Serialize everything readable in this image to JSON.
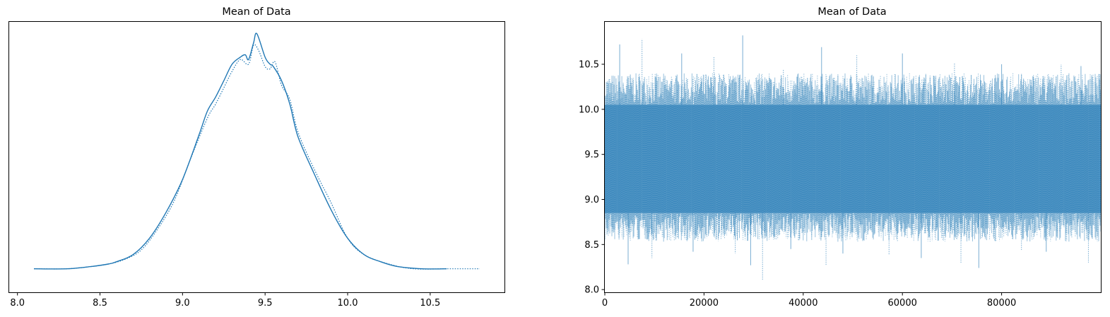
{
  "chart_data": [
    {
      "type": "line",
      "title": "Mean of Data",
      "xlabel": "",
      "ylabel": "",
      "xlim": [
        7.95,
        10.95
      ],
      "ylim": [
        -0.1,
        1.05
      ],
      "yticks_visible": false,
      "xticks": [
        8.0,
        8.5,
        9.0,
        9.5,
        10.0,
        10.5
      ],
      "xtick_labels": [
        "8.0",
        "8.5",
        "9.0",
        "9.5",
        "10.0",
        "10.5"
      ],
      "grid": false,
      "color": "#1f77b4",
      "series": [
        {
          "style": "solid",
          "x": [
            8.1,
            8.3,
            8.45,
            8.55,
            8.6,
            8.7,
            8.8,
            8.9,
            9.0,
            9.1,
            9.15,
            9.2,
            9.25,
            9.3,
            9.35,
            9.38,
            9.4,
            9.43,
            9.45,
            9.5,
            9.53,
            9.55,
            9.6,
            9.65,
            9.7,
            9.8,
            9.9,
            10.0,
            10.1,
            10.2,
            10.3,
            10.45,
            10.6
          ],
          "y": [
            0.0,
            0.0,
            0.01,
            0.02,
            0.03,
            0.06,
            0.13,
            0.24,
            0.38,
            0.57,
            0.67,
            0.73,
            0.8,
            0.87,
            0.9,
            0.91,
            0.89,
            0.96,
            1.0,
            0.9,
            0.87,
            0.86,
            0.8,
            0.7,
            0.56,
            0.4,
            0.25,
            0.13,
            0.06,
            0.03,
            0.01,
            0.0,
            0.0
          ]
        },
        {
          "style": "dotted",
          "x": [
            8.1,
            8.3,
            8.45,
            8.55,
            8.65,
            8.75,
            8.85,
            8.95,
            9.05,
            9.15,
            9.2,
            9.25,
            9.3,
            9.35,
            9.4,
            9.43,
            9.46,
            9.5,
            9.53,
            9.56,
            9.6,
            9.65,
            9.7,
            9.8,
            9.9,
            10.0,
            10.1,
            10.25,
            10.4,
            10.6,
            10.8
          ],
          "y": [
            0.0,
            0.0,
            0.01,
            0.02,
            0.04,
            0.08,
            0.17,
            0.29,
            0.47,
            0.64,
            0.7,
            0.77,
            0.84,
            0.89,
            0.87,
            0.95,
            0.93,
            0.86,
            0.85,
            0.88,
            0.78,
            0.72,
            0.58,
            0.42,
            0.28,
            0.13,
            0.06,
            0.02,
            0.0,
            0.0,
            0.0
          ]
        }
      ]
    },
    {
      "type": "line",
      "title": "Mean of Data",
      "xlabel": "",
      "ylabel": "",
      "xlim": [
        0,
        100000
      ],
      "ylim": [
        7.97,
        10.97
      ],
      "xticks": [
        0,
        20000,
        40000,
        60000,
        80000
      ],
      "xtick_labels": [
        "0",
        "20000",
        "40000",
        "60000",
        "80000"
      ],
      "yticks": [
        8.0,
        8.5,
        9.0,
        9.5,
        10.0,
        10.5
      ],
      "ytick_labels": [
        "8.0",
        "8.5",
        "9.0",
        "9.5",
        "10.0",
        "10.5"
      ],
      "grid": false,
      "color": "#1f77b4",
      "alpha": 0.5,
      "series_styles": [
        "solid",
        "dotted"
      ],
      "band": {
        "lower": 8.85,
        "upper": 10.05,
        "center": 9.45
      },
      "spikes_high": [
        [
          3000,
          10.72
        ],
        [
          7500,
          10.78
        ],
        [
          15500,
          10.62
        ],
        [
          22000,
          10.58
        ],
        [
          27800,
          10.82
        ],
        [
          36000,
          10.44
        ],
        [
          43700,
          10.69
        ],
        [
          50800,
          10.6
        ],
        [
          60000,
          10.62
        ],
        [
          70500,
          10.52
        ],
        [
          80000,
          10.5
        ],
        [
          92000,
          10.5
        ],
        [
          96000,
          10.48
        ]
      ],
      "spikes_low": [
        [
          4700,
          8.28
        ],
        [
          9500,
          8.35
        ],
        [
          17800,
          8.42
        ],
        [
          26300,
          8.4
        ],
        [
          29400,
          8.27
        ],
        [
          31800,
          8.1
        ],
        [
          37500,
          8.45
        ],
        [
          44600,
          8.27
        ],
        [
          48000,
          8.4
        ],
        [
          57300,
          8.38
        ],
        [
          63800,
          8.35
        ],
        [
          71800,
          8.29
        ],
        [
          75400,
          8.24
        ],
        [
          84000,
          8.44
        ],
        [
          89000,
          8.42
        ],
        [
          97500,
          8.3
        ]
      ]
    }
  ]
}
